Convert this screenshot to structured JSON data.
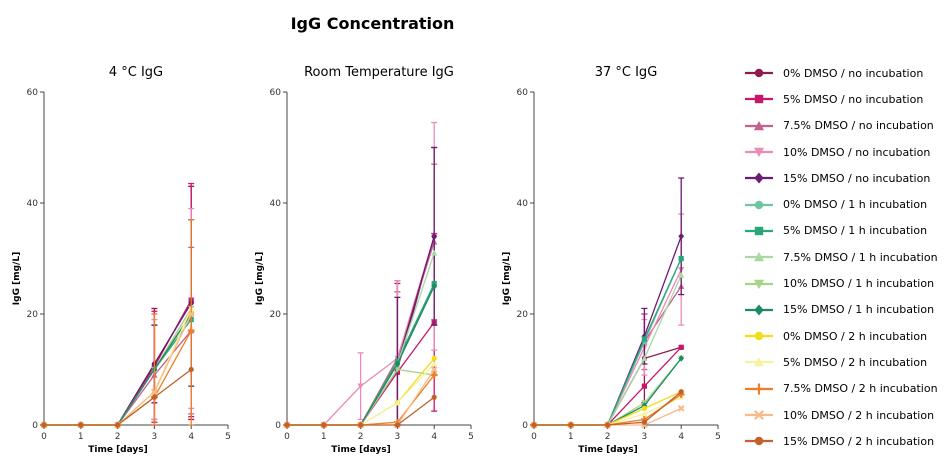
{
  "title": "IgG Concentration",
  "legend_entries": [
    {
      "label": "0% DMSO / no incubation",
      "color": "#8c1b4f",
      "marker": "circle"
    },
    {
      "label": "5% DMSO / no incubation",
      "color": "#c7166b",
      "marker": "square"
    },
    {
      "label": "7.5% DMSO / no incubation",
      "color": "#c7608e",
      "marker": "triangle-up"
    },
    {
      "label": "10% DMSO / no incubation",
      "color": "#ec8ab8",
      "marker": "triangle-down"
    },
    {
      "label": "15% DMSO / no incubation",
      "color": "#6a1b72",
      "marker": "diamond"
    },
    {
      "label": "0% DMSO / 1 h incubation",
      "color": "#6dc5a2",
      "marker": "circle"
    },
    {
      "label": "5% DMSO / 1 h incubation",
      "color": "#29a779",
      "marker": "square"
    },
    {
      "label": "7.5% DMSO / 1 h incubation",
      "color": "#a9d8a4",
      "marker": "triangle-up"
    },
    {
      "label": "10% DMSO / 1 h incubation",
      "color": "#a7d487",
      "marker": "triangle-down"
    },
    {
      "label": "15% DMSO / 1 h incubation",
      "color": "#1e8a63",
      "marker": "diamond"
    },
    {
      "label": "0% DMSO / 2 h incubation",
      "color": "#f3dc18",
      "marker": "circle"
    },
    {
      "label": "5% DMSO / 2 h incubation",
      "color": "#f6f2a0",
      "marker": "triangle-up"
    },
    {
      "label": "7.5% DMSO / 2 h incubation",
      "color": "#ee7e28",
      "marker": "plus"
    },
    {
      "label": "10% DMSO / 2 h incubation",
      "color": "#f7ba8a",
      "marker": "cross"
    },
    {
      "label": "15% DMSO / 2 h incubation",
      "color": "#c0622a",
      "marker": "circle"
    }
  ],
  "chart_data": [
    {
      "type": "line",
      "title": "4 °C IgG",
      "xlabel": "Time [days]",
      "ylabel": "IgG [mg/L]",
      "xlim": [
        0,
        5
      ],
      "ylim": [
        0,
        60
      ],
      "xticks": [
        0,
        1,
        2,
        3,
        4,
        5
      ],
      "yticks": [
        0,
        20,
        40,
        60
      ],
      "x": [
        0,
        1,
        2,
        3,
        4
      ],
      "series": [
        {
          "name": "0% DMSO / no incubation",
          "values": [
            0,
            0,
            0,
            11,
            22
          ],
          "errors": [
            0,
            0,
            0,
            10,
            21
          ]
        },
        {
          "name": "5% DMSO / no incubation",
          "values": [
            0,
            0,
            0,
            10.5,
            22.5
          ],
          "errors": [
            0,
            0,
            0,
            10,
            21
          ]
        },
        {
          "name": "7.5% DMSO / no incubation",
          "values": [
            0,
            0,
            0,
            9,
            17
          ],
          "errors": [
            0,
            0,
            0,
            9,
            15
          ]
        },
        {
          "name": "10% DMSO / no incubation",
          "values": [
            0,
            0,
            0,
            10,
            21
          ],
          "errors": [
            0,
            0,
            0,
            9,
            18
          ]
        },
        {
          "name": "15% DMSO / no incubation",
          "values": [
            0,
            0,
            0,
            11,
            22
          ],
          "errors": [
            0,
            0,
            0,
            7,
            15
          ]
        },
        {
          "name": "0% DMSO / 1 h incubation",
          "values": [
            0,
            0,
            0,
            10,
            20
          ],
          "errors": [
            0,
            0,
            0,
            0,
            0
          ]
        },
        {
          "name": "5% DMSO / 1 h incubation",
          "values": [
            0,
            0,
            0,
            10,
            19
          ],
          "errors": [
            0,
            0,
            0,
            0,
            0
          ]
        },
        {
          "name": "7.5% DMSO / 1 h incubation",
          "values": [
            0,
            0,
            0,
            10,
            20
          ],
          "errors": [
            0,
            0,
            0,
            0,
            0
          ]
        },
        {
          "name": "10% DMSO / 1 h incubation",
          "values": [
            0,
            0,
            0,
            10,
            21
          ],
          "errors": [
            0,
            0,
            0,
            0,
            0
          ]
        },
        {
          "name": "15% DMSO / 1 h incubation",
          "values": [
            0,
            0,
            0,
            10,
            20
          ],
          "errors": [
            0,
            0,
            0,
            0,
            0
          ]
        },
        {
          "name": "0% DMSO / 2 h incubation",
          "values": [
            0,
            0,
            0,
            6,
            20
          ],
          "errors": [
            0,
            0,
            0,
            0,
            0
          ]
        },
        {
          "name": "5% DMSO / 2 h incubation",
          "values": [
            0,
            0,
            0,
            6,
            21
          ],
          "errors": [
            0,
            0,
            0,
            0,
            0
          ]
        },
        {
          "name": "7.5% DMSO / 2 h incubation",
          "values": [
            0,
            0,
            0,
            5,
            17
          ],
          "errors": [
            0,
            0,
            0,
            15,
            20
          ]
        },
        {
          "name": "10% DMSO / 2 h incubation",
          "values": [
            0,
            0,
            0,
            6,
            20
          ],
          "errors": [
            0,
            0,
            0,
            0,
            0
          ]
        },
        {
          "name": "15% DMSO / 2 h incubation",
          "values": [
            0,
            0,
            0,
            5,
            10
          ],
          "errors": [
            0,
            0,
            0,
            0,
            0
          ]
        }
      ]
    },
    {
      "type": "line",
      "title": "Room Temperature IgG",
      "xlabel": "Time [days]",
      "ylabel": "IgG [mg/L]",
      "xlim": [
        0,
        5
      ],
      "ylim": [
        0,
        60
      ],
      "xticks": [
        0,
        1,
        2,
        3,
        4,
        5
      ],
      "yticks": [
        0,
        20,
        40,
        60
      ],
      "x": [
        0,
        1,
        2,
        3,
        4
      ],
      "series": [
        {
          "name": "0% DMSO / no incubation",
          "values": [
            0,
            0,
            0,
            10,
            34
          ],
          "errors": [
            0,
            0,
            0,
            16,
            16
          ]
        },
        {
          "name": "5% DMSO / no incubation",
          "values": [
            0,
            0,
            0,
            9.5,
            18.5
          ],
          "errors": [
            0,
            0,
            0,
            16,
            16
          ]
        },
        {
          "name": "7.5% DMSO / no incubation",
          "values": [
            0,
            0,
            0,
            12,
            33
          ],
          "errors": [
            0,
            0,
            0,
            12,
            14
          ]
        },
        {
          "name": "10% DMSO / no incubation",
          "values": [
            0,
            0,
            7,
            12,
            34
          ],
          "errors": [
            0,
            0,
            6,
            14,
            20.5
          ]
        },
        {
          "name": "15% DMSO / no incubation",
          "values": [
            0,
            0,
            0,
            11,
            34
          ],
          "errors": [
            0,
            0,
            0,
            12,
            16
          ]
        },
        {
          "name": "0% DMSO / 1 h incubation",
          "values": [
            0,
            0,
            0,
            11,
            25
          ],
          "errors": [
            0,
            0,
            0,
            0,
            0
          ]
        },
        {
          "name": "5% DMSO / 1 h incubation",
          "values": [
            0,
            0,
            0,
            11.5,
            25.5
          ],
          "errors": [
            0,
            0,
            0,
            0,
            0
          ]
        },
        {
          "name": "7.5% DMSO / 1 h incubation",
          "values": [
            0,
            0,
            0,
            11,
            31
          ],
          "errors": [
            0,
            0,
            0,
            0,
            0
          ]
        },
        {
          "name": "10% DMSO / 1 h incubation",
          "values": [
            0,
            0,
            0,
            10,
            9
          ],
          "errors": [
            0,
            0,
            0,
            0,
            0
          ]
        },
        {
          "name": "15% DMSO / 1 h incubation",
          "values": [
            0,
            0,
            0,
            11,
            25
          ],
          "errors": [
            0,
            0,
            0,
            0,
            0
          ]
        },
        {
          "name": "0% DMSO / 2 h incubation",
          "values": [
            0,
            0,
            0,
            4,
            12
          ],
          "errors": [
            0,
            0,
            0,
            0,
            0
          ]
        },
        {
          "name": "5% DMSO / 2 h incubation",
          "values": [
            0,
            0,
            0,
            4,
            11
          ],
          "errors": [
            0,
            0,
            0,
            0,
            0
          ]
        },
        {
          "name": "7.5% DMSO / 2 h incubation",
          "values": [
            0,
            0,
            0,
            0.5,
            9
          ],
          "errors": [
            0,
            0,
            0,
            0,
            0
          ]
        },
        {
          "name": "10% DMSO / 2 h incubation",
          "values": [
            0,
            0,
            0,
            0,
            10
          ],
          "errors": [
            0,
            0,
            0,
            0,
            0
          ]
        },
        {
          "name": "15% DMSO / 2 h incubation",
          "values": [
            0,
            0,
            0,
            0,
            5
          ],
          "errors": [
            0,
            0,
            0,
            0,
            0
          ]
        }
      ]
    },
    {
      "type": "line",
      "title": "37 °C IgG",
      "xlabel": "Time [days]",
      "ylabel": "IgG [mg/L]",
      "xlim": [
        0,
        5
      ],
      "ylim": [
        0,
        60
      ],
      "xticks": [
        0,
        1,
        2,
        3,
        4,
        5
      ],
      "yticks": [
        0,
        20,
        40,
        60
      ],
      "x": [
        0,
        1,
        2,
        3,
        4
      ],
      "series": [
        {
          "name": "0% DMSO / no incubation",
          "values": [
            0,
            0,
            0,
            12,
            14
          ],
          "errors": [
            0,
            0,
            0,
            8,
            0
          ]
        },
        {
          "name": "5% DMSO / no incubation",
          "values": [
            0,
            0,
            0,
            7,
            14
          ],
          "errors": [
            0,
            0,
            0,
            0,
            0
          ]
        },
        {
          "name": "7.5% DMSO / no incubation",
          "values": [
            0,
            0,
            0,
            15,
            25
          ],
          "errors": [
            0,
            0,
            0,
            5,
            0
          ]
        },
        {
          "name": "10% DMSO / no incubation",
          "values": [
            0,
            0,
            0,
            14,
            28
          ],
          "errors": [
            0,
            0,
            0,
            5,
            10
          ]
        },
        {
          "name": "15% DMSO / no incubation",
          "values": [
            0,
            0,
            0,
            16,
            34
          ],
          "errors": [
            0,
            0,
            0,
            5,
            10.5
          ]
        },
        {
          "name": "0% DMSO / 1 h incubation",
          "values": [
            0,
            0,
            0,
            15,
            30
          ],
          "errors": [
            0,
            0,
            0,
            0,
            0
          ]
        },
        {
          "name": "5% DMSO / 1 h incubation",
          "values": [
            0,
            0,
            0,
            15.5,
            30
          ],
          "errors": [
            0,
            0,
            0,
            0,
            0
          ]
        },
        {
          "name": "7.5% DMSO / 1 h incubation",
          "values": [
            0,
            0,
            0,
            12,
            27
          ],
          "errors": [
            0,
            0,
            0,
            0,
            0
          ]
        },
        {
          "name": "10% DMSO / 1 h incubation",
          "values": [
            0,
            0,
            0,
            4,
            12
          ],
          "errors": [
            0,
            0,
            0,
            0,
            0
          ]
        },
        {
          "name": "15% DMSO / 1 h incubation",
          "values": [
            0,
            0,
            0,
            3.5,
            12
          ],
          "errors": [
            0,
            0,
            0,
            0,
            0
          ]
        },
        {
          "name": "0% DMSO / 2 h incubation",
          "values": [
            0,
            0,
            0,
            3,
            6
          ],
          "errors": [
            0,
            0,
            0,
            0,
            0
          ]
        },
        {
          "name": "5% DMSO / 2 h incubation",
          "values": [
            0,
            0,
            0,
            2,
            5
          ],
          "errors": [
            0,
            0,
            0,
            0,
            0
          ]
        },
        {
          "name": "7.5% DMSO / 2 h incubation",
          "values": [
            0,
            0,
            0,
            1,
            5.5
          ],
          "errors": [
            0,
            0,
            0,
            0,
            0
          ]
        },
        {
          "name": "10% DMSO / 2 h incubation",
          "values": [
            0,
            0,
            0,
            0,
            3
          ],
          "errors": [
            0,
            0,
            0,
            0,
            0
          ]
        },
        {
          "name": "15% DMSO / 2 h incubation",
          "values": [
            0,
            0,
            0,
            0.5,
            6
          ],
          "errors": [
            0,
            0,
            0,
            0,
            0
          ]
        }
      ]
    }
  ]
}
